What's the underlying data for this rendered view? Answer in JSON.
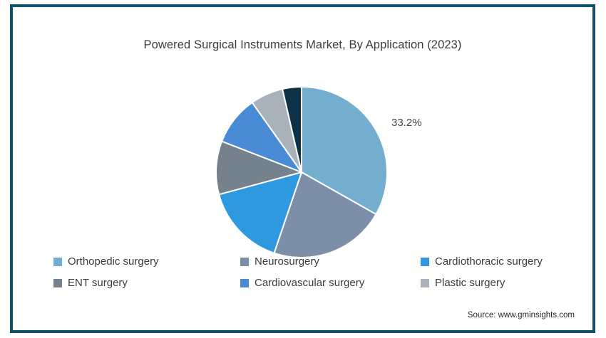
{
  "title": "Powered Surgical Instruments Market, By Application (2023)",
  "source_note": "Source: www.gminsights.com",
  "colors": {
    "frame_border": "#12506A",
    "background": "#ffffff",
    "title_text": "#3b3b3b",
    "legend_text": "#3b3b3b",
    "value_label_text": "#474747"
  },
  "chart_data": {
    "type": "pie",
    "title": "Powered Surgical Instruments Market, By Application (2023)",
    "legend_position": "bottom",
    "rotation_start_deg": 0,
    "direction": "clockwise",
    "shown_data_label": "33.2%",
    "slices": [
      {
        "label": "Orthopedic surgery",
        "value": 33.2,
        "color": "#74AECF",
        "data_label": "33.2%",
        "in_legend": true
      },
      {
        "label": "Neurosurgery",
        "value": 22.0,
        "color": "#7D8FA8",
        "data_label": "",
        "in_legend": true
      },
      {
        "label": "Cardiothoracic surgery",
        "value": 15.6,
        "color": "#2F99DF",
        "data_label": "",
        "in_legend": true
      },
      {
        "label": "ENT surgery",
        "value": 10.1,
        "color": "#75818D",
        "data_label": "",
        "in_legend": true
      },
      {
        "label": "Cardiovascular surgery",
        "value": 9.3,
        "color": "#4A8BD5",
        "data_label": "",
        "in_legend": true
      },
      {
        "label": "Plastic surgery",
        "value": 6.2,
        "color": "#A9B2BA",
        "data_label": "",
        "in_legend": true
      },
      {
        "label": "",
        "value": 3.6,
        "color": "#0D3246",
        "data_label": "",
        "in_legend": false
      }
    ]
  }
}
